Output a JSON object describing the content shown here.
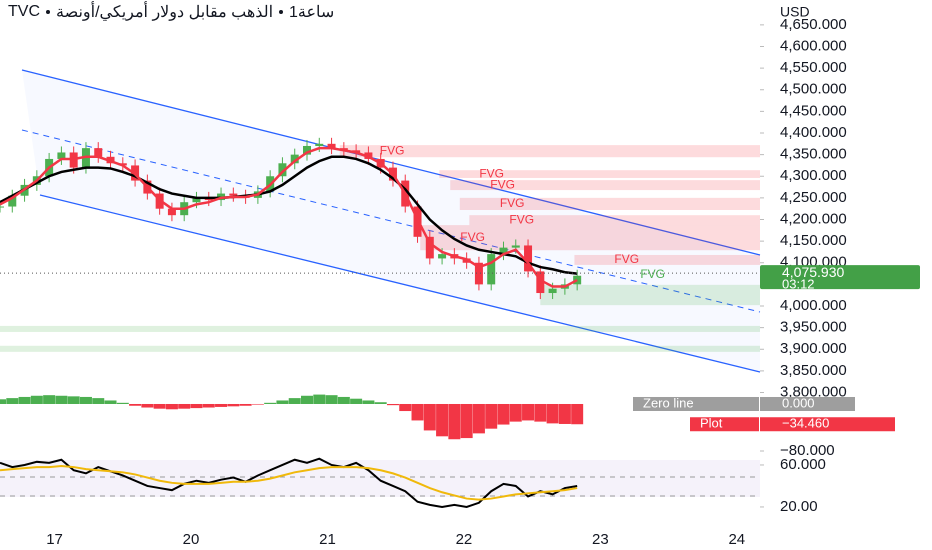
{
  "header": {
    "symbol": "TVC",
    "description": "الذهب مقابل دولار أمريكي/أونصة",
    "interval": "1ساعة",
    "currency": "USD"
  },
  "chart_data": [
    {
      "type": "candlestick",
      "x": [
        -0.4,
        -0.31,
        -0.22,
        -0.13,
        -0.04,
        0.05,
        0.14,
        0.23,
        0.32,
        0.41,
        0.5,
        0.59,
        0.68,
        0.77,
        0.86,
        0.95,
        1.04,
        1.13,
        1.22,
        1.31,
        1.4,
        1.49,
        1.58,
        1.67,
        1.76,
        1.85,
        1.94,
        2.03,
        2.12,
        2.21,
        2.3,
        2.39,
        2.48,
        2.57,
        2.66,
        2.75,
        2.84,
        2.93,
        3.02,
        3.11,
        3.2,
        3.29,
        3.38,
        3.47,
        3.56,
        3.65,
        3.74,
        3.83
      ],
      "xlim": [
        -0.4,
        5.17
      ],
      "xticks": [
        {
          "value": 0,
          "label": "17"
        },
        {
          "value": 1,
          "label": "20"
        },
        {
          "value": 2,
          "label": "21"
        },
        {
          "value": 3,
          "label": "22"
        },
        {
          "value": 4,
          "label": "23"
        },
        {
          "value": 5,
          "label": "24"
        }
      ],
      "ylim": [
        3782.7,
        4707.5
      ],
      "yticks": [
        {
          "value": 4650,
          "label": "4,650.000"
        },
        {
          "value": 4600,
          "label": "4,600.000"
        },
        {
          "value": 4550,
          "label": "4,550.000"
        },
        {
          "value": 4500,
          "label": "4,500.000"
        },
        {
          "value": 4450,
          "label": "4,450.000"
        },
        {
          "value": 4400,
          "label": "4,400.000"
        },
        {
          "value": 4350,
          "label": "4,350.000"
        },
        {
          "value": 4300,
          "label": "4,300.000"
        },
        {
          "value": 4250,
          "label": "4,250.000"
        },
        {
          "value": 4200,
          "label": "4,200.000"
        },
        {
          "value": 4150,
          "label": "4,150.000"
        },
        {
          "value": 4100,
          "label": "4,100.000"
        },
        {
          "value": 4000,
          "label": "4,000.000"
        },
        {
          "value": 3950,
          "label": "3,950.000"
        },
        {
          "value": 3900,
          "label": "3,900.000"
        },
        {
          "value": 3850,
          "label": "3,850.000"
        },
        {
          "value": 3800,
          "label": "3,800.000"
        }
      ],
      "up_color": "#4caf50",
      "down_color": "#f23645",
      "values": [
        4230,
        4255,
        4280,
        4300,
        4340,
        4355,
        4320,
        4365,
        4345,
        4330,
        4325,
        4290,
        4260,
        4225,
        4210,
        4240,
        4250,
        4245,
        4260,
        4255,
        4250,
        4265,
        4300,
        4330,
        4350,
        4370,
        4375,
        4365,
        4360,
        4355,
        4340,
        4320,
        4290,
        4230,
        4160,
        4110,
        4120,
        4110,
        4100,
        4050,
        4120,
        4135,
        4140,
        4080,
        4030,
        4040,
        4050,
        4070
      ],
      "series": [
        {
          "color": "#000000",
          "values": [
            4240,
            4255,
            4270,
            4285,
            4300,
            4310,
            4315,
            4320,
            4320,
            4318,
            4310,
            4300,
            4285,
            4270,
            4260,
            4255,
            4250,
            4250,
            4250,
            4252,
            4255,
            4258,
            4265,
            4280,
            4300,
            4320,
            4335,
            4345,
            4345,
            4340,
            4330,
            4315,
            4295,
            4270,
            4235,
            4200,
            4175,
            4155,
            4140,
            4130,
            4125,
            4120,
            4115,
            4100,
            4090,
            4085,
            4078,
            4075
          ]
        },
        {
          "color": "#f23645",
          "values": [
            4235,
            4250,
            4270,
            4290,
            4320,
            4340,
            4340,
            4345,
            4345,
            4335,
            4325,
            4305,
            4275,
            4245,
            4225,
            4225,
            4235,
            4240,
            4250,
            4252,
            4252,
            4258,
            4280,
            4310,
            4335,
            4355,
            4365,
            4365,
            4360,
            4355,
            4345,
            4330,
            4305,
            4260,
            4200,
            4145,
            4125,
            4115,
            4108,
            4090,
            4100,
            4120,
            4130,
            4100,
            4060,
            4045,
            4045,
            4060
          ]
        }
      ],
      "zones": [
        {
          "label": "FVG",
          "low": 4344,
          "high": 4372,
          "start": 2.09,
          "color": "#f23645"
        },
        {
          "label": "FVG",
          "low": 4296,
          "high": 4314,
          "start": 2.82,
          "color": "#f23645"
        },
        {
          "label": "FVG",
          "low": 4268,
          "high": 4291,
          "start": 2.9,
          "color": "#f23645"
        },
        {
          "label": "FVG",
          "low": 4222,
          "high": 4250,
          "start": 2.97,
          "color": "#f23645"
        },
        {
          "label": "FVG",
          "low": 4187,
          "high": 4210,
          "start": 3.04,
          "color": "#f23645"
        },
        {
          "label": "FVG",
          "low": 4129,
          "high": 4187,
          "start": 2.68,
          "color": "#f23645"
        },
        {
          "label": "FVG",
          "low": 4095,
          "high": 4118,
          "start": 3.81,
          "color": "#f23645"
        },
        {
          "label": "FVG",
          "low": 4002,
          "high": 4049,
          "start": 3.56,
          "color": "#4caf50"
        },
        {
          "low": 3940,
          "high": 3954,
          "start": -0.4,
          "color": "#4caf50"
        },
        {
          "low": 3894,
          "high": 3908,
          "start": -0.4,
          "color": "#4caf50"
        }
      ],
      "last_price": {
        "value": 4075.93,
        "label": "4,075.930"
      },
      "countdown": "03:12"
    },
    {
      "type": "bar",
      "x": [
        -0.4,
        -0.31,
        -0.22,
        -0.13,
        -0.04,
        0.05,
        0.14,
        0.23,
        0.32,
        0.41,
        0.5,
        0.59,
        0.68,
        0.77,
        0.86,
        0.95,
        1.04,
        1.13,
        1.22,
        1.31,
        1.4,
        1.49,
        1.58,
        1.67,
        1.76,
        1.85,
        1.94,
        2.03,
        2.12,
        2.21,
        2.3,
        2.39,
        2.48,
        2.57,
        2.66,
        2.75,
        2.84,
        2.93,
        3.02,
        3.11,
        3.2,
        3.29,
        3.38,
        3.47,
        3.56,
        3.65,
        3.74,
        3.83
      ],
      "values": [
        8,
        10,
        12,
        14,
        15,
        14,
        13,
        12,
        10,
        6,
        2,
        -3,
        -6,
        -8,
        -9,
        -8,
        -7,
        -6,
        -5,
        -4,
        -3,
        -1,
        2,
        6,
        10,
        14,
        16,
        15,
        12,
        9,
        6,
        3,
        -2,
        -12,
        -28,
        -45,
        -55,
        -60,
        -58,
        -50,
        -42,
        -35,
        -30,
        -28,
        -30,
        -33,
        -34,
        -34.46
      ],
      "up_color": "#4caf50",
      "down_color": "#f23645",
      "ylim": [
        -86.8,
        15.3
      ],
      "yticks": [
        {
          "value": -80,
          "label": "−80.000"
        }
      ],
      "zero_line": {
        "name": "Zero line",
        "value": 0,
        "label": "0.000"
      },
      "plot_label": {
        "name": "Plot",
        "value": -34.46,
        "label": "−34.460"
      }
    },
    {
      "type": "line",
      "x": [
        -0.4,
        -0.31,
        -0.22,
        -0.13,
        -0.04,
        0.05,
        0.14,
        0.23,
        0.32,
        0.41,
        0.5,
        0.59,
        0.68,
        0.77,
        0.86,
        0.95,
        1.04,
        1.13,
        1.22,
        1.31,
        1.4,
        1.49,
        1.58,
        1.67,
        1.76,
        1.85,
        1.94,
        2.03,
        2.12,
        2.21,
        2.3,
        2.39,
        2.48,
        2.57,
        2.66,
        2.75,
        2.84,
        2.93,
        3.02,
        3.11,
        3.2,
        3.29,
        3.38,
        3.47,
        3.56,
        3.65,
        3.74,
        3.83
      ],
      "series": [
        {
          "color": "#000000",
          "values": [
            62,
            58,
            60,
            63,
            62,
            65,
            55,
            52,
            58,
            54,
            50,
            45,
            40,
            38,
            36,
            42,
            45,
            43,
            46,
            48,
            44,
            50,
            55,
            60,
            65,
            62,
            66,
            60,
            58,
            62,
            55,
            45,
            40,
            35,
            25,
            22,
            20,
            22,
            20,
            24,
            35,
            42,
            40,
            30,
            35,
            32,
            38,
            40
          ]
        },
        {
          "color": "#f0b90b",
          "values": [
            55,
            56,
            57,
            58,
            58,
            59,
            58,
            56,
            55,
            54,
            53,
            51,
            48,
            45,
            43,
            42,
            42,
            42,
            43,
            44,
            44,
            45,
            47,
            50,
            53,
            55,
            57,
            58,
            58,
            58,
            57,
            55,
            52,
            48,
            43,
            38,
            34,
            31,
            28,
            27,
            28,
            30,
            32,
            33,
            34,
            35,
            36,
            38
          ]
        }
      ],
      "ylim": [
        15.2,
        69.5
      ],
      "yticks": [
        {
          "value": 60,
          "label": "60.000"
        },
        {
          "value": 20,
          "label": "20.00"
        }
      ]
    }
  ]
}
